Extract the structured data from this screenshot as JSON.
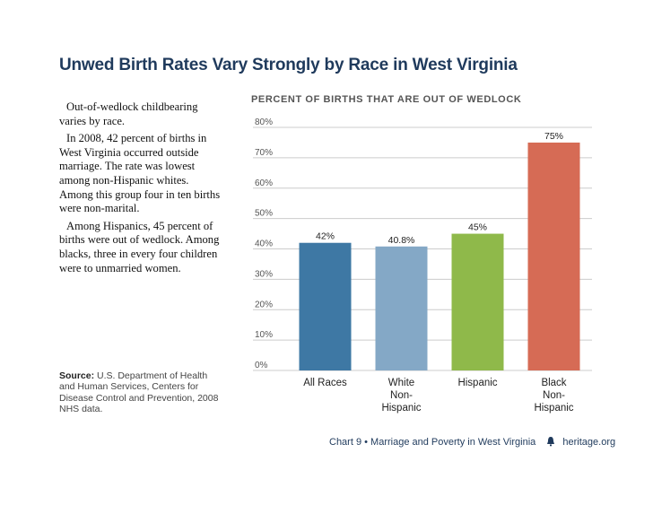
{
  "title": "Unwed Birth Rates Vary Strongly by Race in West Virginia",
  "sidebar": {
    "paragraphs": [
      "Out-of-wedlock childbearing varies by race.",
      "In 2008, 42 percent of births in West Virginia occurred outside marriage. The rate was lowest among non-Hispanic whites. Among this group four in ten births were non-marital.",
      "Among Hispanics, 45 percent of births were out of wedlock. Among blacks, three in every four children were to unmarried women."
    ]
  },
  "source": {
    "label": "Source:",
    "text": "U.S. Department of Health and Human Services, Centers for Disease Control and Prevention, 2008 NHS data."
  },
  "footer": {
    "chart_ref": "Chart 9 • Marriage and Poverty in West Virginia",
    "site": "heritage.org"
  },
  "colors": {
    "title": "#1f3a5c",
    "grid": "#cccccc",
    "bars": [
      "#3e78a4",
      "#84a8c6",
      "#8fb94a",
      "#d66b55"
    ]
  },
  "chart_data": {
    "type": "bar",
    "title": "PERCENT OF BIRTHS THAT ARE OUT OF WEDLOCK",
    "categories": [
      [
        "All Races"
      ],
      [
        "White",
        "Non-",
        "Hispanic"
      ],
      [
        "Hispanic"
      ],
      [
        "Black",
        "Non-",
        "Hispanic"
      ]
    ],
    "values": [
      42,
      40.8,
      45,
      75
    ],
    "value_labels": [
      "42%",
      "40.8%",
      "45%",
      "75%"
    ],
    "ylim": [
      0,
      80
    ],
    "yticks": [
      0,
      10,
      20,
      30,
      40,
      50,
      60,
      70,
      80
    ],
    "ytick_labels": [
      "0%",
      "10%",
      "20%",
      "30%",
      "40%",
      "50%",
      "60%",
      "70%",
      "80%"
    ],
    "grid": true,
    "legend": "none"
  }
}
